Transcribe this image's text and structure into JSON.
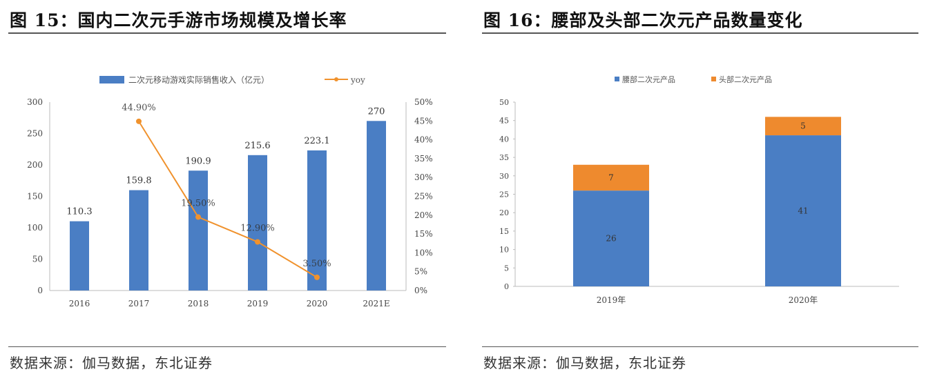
{
  "left": {
    "title": "图 15：国内二次元手游市场规模及增长率",
    "source": "数据来源：伽马数据，东北证券"
  },
  "right": {
    "title": "图 16：腰部及头部二次元产品数量变化",
    "source": "数据来源：伽马数据，东北证券"
  },
  "chart_data": [
    {
      "type": "bar+line",
      "categories": [
        "2016",
        "2017",
        "2018",
        "2019",
        "2020",
        "2021E"
      ],
      "series": [
        {
          "name": "二次元移动游戏实际销售收入（亿元）",
          "kind": "bar",
          "axis": "left",
          "color": "#4a7ec4",
          "values": [
            110.3,
            159.8,
            190.9,
            215.6,
            223.1,
            270
          ],
          "labels": [
            "110.3",
            "159.8",
            "190.9",
            "215.6",
            "223.1",
            "270"
          ]
        },
        {
          "name": "yoy",
          "kind": "line",
          "axis": "right",
          "color": "#f0922d",
          "values": [
            null,
            44.9,
            19.5,
            12.9,
            3.5,
            null
          ],
          "labels": [
            null,
            "44.90%",
            "19.50%",
            "12.90%",
            "3.50%",
            null
          ]
        }
      ],
      "ylim_left": [
        0,
        300
      ],
      "yticks_left": [
        "0",
        "50",
        "100",
        "150",
        "200",
        "250",
        "300"
      ],
      "ylim_right": [
        0,
        50
      ],
      "yticks_right": [
        "0%",
        "5%",
        "10%",
        "15%",
        "20%",
        "25%",
        "30%",
        "35%",
        "40%",
        "45%",
        "50%"
      ],
      "legend_position": "top"
    },
    {
      "type": "stacked-bar",
      "categories": [
        "2019年",
        "2020年"
      ],
      "series": [
        {
          "name": "腰部二次元产品",
          "color": "#4a7ec4",
          "values": [
            26,
            41
          ]
        },
        {
          "name": "头部二次元产品",
          "color": "#ee8a2e",
          "values": [
            7,
            5
          ]
        }
      ],
      "ylim": [
        0,
        50
      ],
      "yticks": [
        "0",
        "5",
        "10",
        "15",
        "20",
        "25",
        "30",
        "35",
        "40",
        "45",
        "50"
      ],
      "grid": false,
      "legend_position": "top"
    }
  ]
}
